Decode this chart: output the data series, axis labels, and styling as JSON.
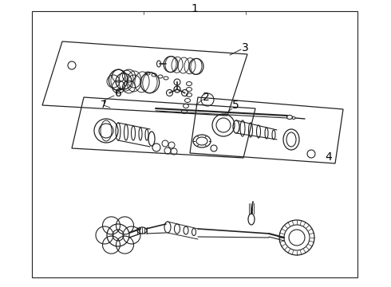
{
  "background_color": "#ffffff",
  "line_color": "#222222",
  "label_color": "#000000",
  "font_size": 10
}
